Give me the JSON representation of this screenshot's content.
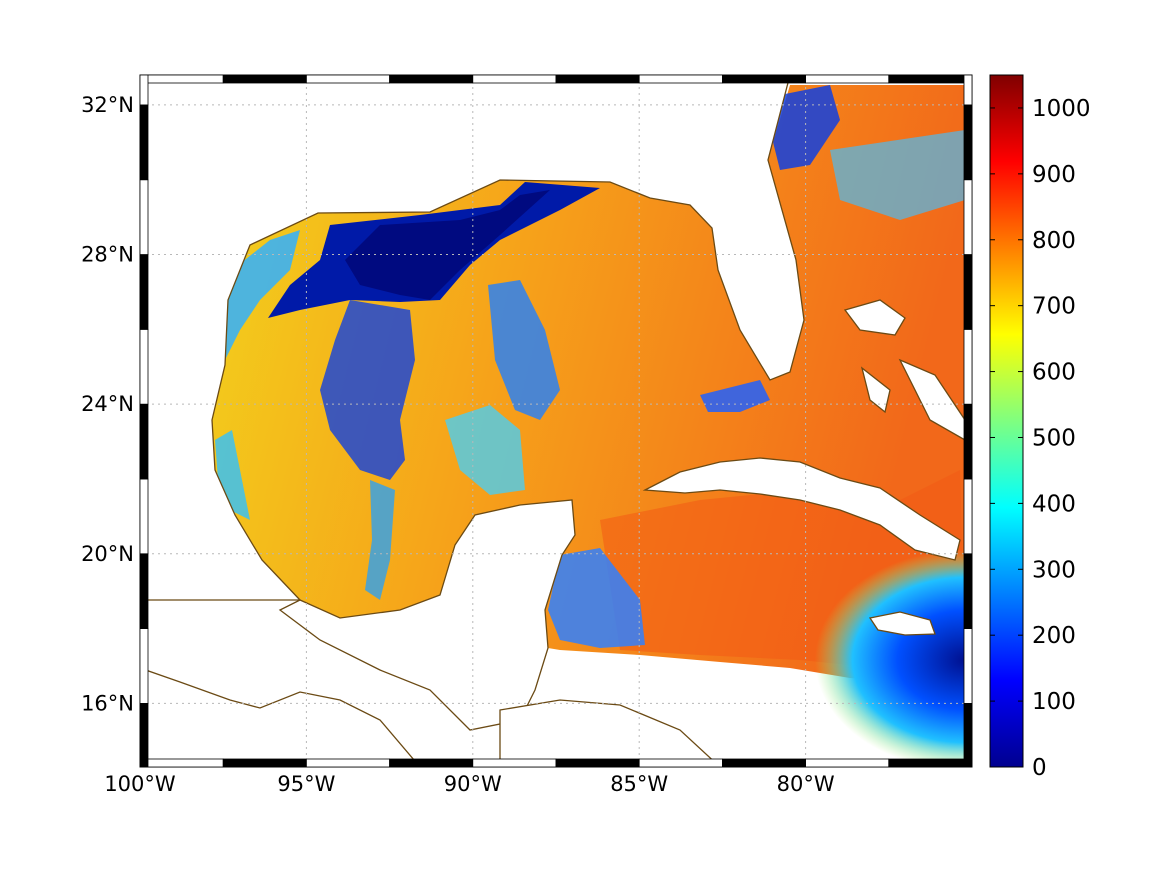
{
  "map": {
    "lon_range": [
      -100,
      -75
    ],
    "lat_range": [
      14.3,
      32.8
    ],
    "lon_ticks": [
      {
        "value": -100,
        "label": "100°W"
      },
      {
        "value": -95,
        "label": "95°W"
      },
      {
        "value": -90,
        "label": "90°W"
      },
      {
        "value": -85,
        "label": "85°W"
      },
      {
        "value": -80,
        "label": "80°W"
      }
    ],
    "lat_ticks": [
      {
        "value": 16,
        "label": "16°N"
      },
      {
        "value": 20,
        "label": "20°N"
      },
      {
        "value": 24,
        "label": "24°N"
      },
      {
        "value": 28,
        "label": "28°N"
      },
      {
        "value": 32,
        "label": "32°N"
      }
    ],
    "grid": true,
    "coastline_color": "#6b4a14",
    "frame_style": "alternating black/white border"
  },
  "colorbar": {
    "colormap": "jet",
    "range": [
      0,
      1050
    ],
    "ticks": [
      {
        "value": 0,
        "label": "0"
      },
      {
        "value": 100,
        "label": "100"
      },
      {
        "value": 200,
        "label": "200"
      },
      {
        "value": 300,
        "label": "300"
      },
      {
        "value": 400,
        "label": "400"
      },
      {
        "value": 500,
        "label": "500"
      },
      {
        "value": 600,
        "label": "600"
      },
      {
        "value": 700,
        "label": "700"
      },
      {
        "value": 800,
        "label": "800"
      },
      {
        "value": 900,
        "label": "900"
      },
      {
        "value": 1000,
        "label": "1000"
      }
    ],
    "placement": "right"
  }
}
